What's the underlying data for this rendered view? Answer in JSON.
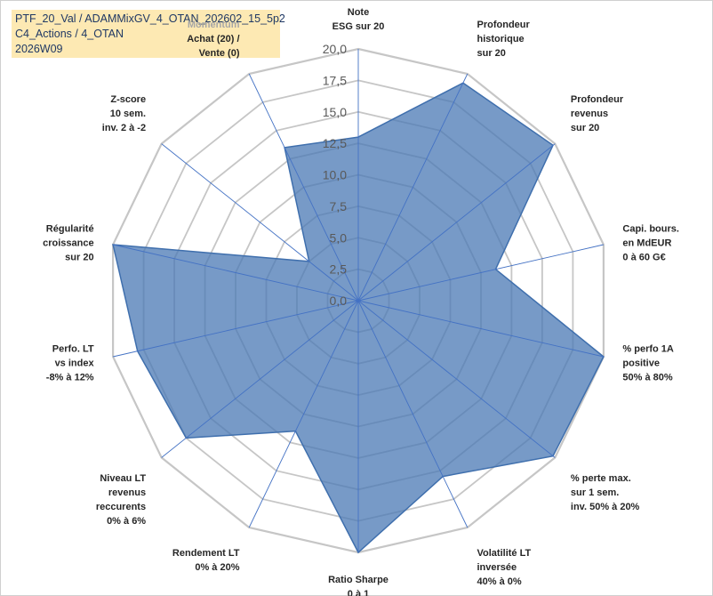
{
  "title": {
    "lines": [
      "PTF_20_Val / ADAMMixGV_4_OTAN_202602_15_5p2",
      "C4_Actions / 4_OTAN",
      "2026W09"
    ]
  },
  "chart_data": {
    "type": "radar",
    "axis_range": [
      0,
      20
    ],
    "ticks": [
      "0,0",
      "2,5",
      "5,0",
      "7,5",
      "10,0",
      "12,5",
      "15,0",
      "17,5",
      "20,0"
    ],
    "tick_values": [
      0,
      2.5,
      5,
      7.5,
      10,
      12.5,
      15,
      17.5,
      20
    ],
    "grid": true,
    "series": [
      {
        "color": "#4a78b4",
        "values": [
          13.0,
          19.2,
          19.8,
          11.2,
          20.0,
          19.8,
          15.5,
          20.0,
          11.5,
          17.5,
          18.0,
          20.0,
          5.0,
          13.5
        ]
      }
    ],
    "categories": [
      {
        "lines": [
          "Note",
          "ESG sur 20"
        ]
      },
      {
        "lines": [
          "Profondeur",
          "historique",
          "sur 20"
        ]
      },
      {
        "lines": [
          "Profondeur",
          "revenus",
          "sur 20"
        ]
      },
      {
        "lines": [
          "Capi. bours.",
          "en MdEUR",
          "0 à 60 G€"
        ]
      },
      {
        "lines": [
          "% perfo 1A",
          "positive",
          "50% à 80%"
        ]
      },
      {
        "lines": [
          "% perte max.",
          "sur 1 sem.",
          "inv. 50% à 20%"
        ]
      },
      {
        "lines": [
          "Volatilité LT",
          "inversée",
          "40% à 0%"
        ]
      },
      {
        "lines": [
          "Ratio Sharpe",
          "0 à 1"
        ]
      },
      {
        "lines": [
          "Rendement LT",
          "0% à 20%"
        ]
      },
      {
        "lines": [
          "Niveau LT",
          "revenus",
          "reccurents",
          "0% à 6%"
        ]
      },
      {
        "lines": [
          "Perfo. LT",
          "vs index",
          "-8% à 12%"
        ]
      },
      {
        "lines": [
          "Régularité",
          "croissance",
          "sur 20"
        ]
      },
      {
        "lines": [
          "Z-score",
          "10 sem.",
          "inv. 2 à -2"
        ]
      },
      {
        "lines": [
          "Momentum",
          "Achat (20) /",
          "Vente (0)"
        ],
        "first_line_muted": true
      }
    ]
  },
  "colors": {
    "fill": "#4a78b4",
    "fill_stroke": "#3f6fad",
    "grid": "#c6c6c6",
    "spoke": "#4472c4",
    "title_bg": "#fde9b3",
    "title_text": "#1f3864"
  }
}
